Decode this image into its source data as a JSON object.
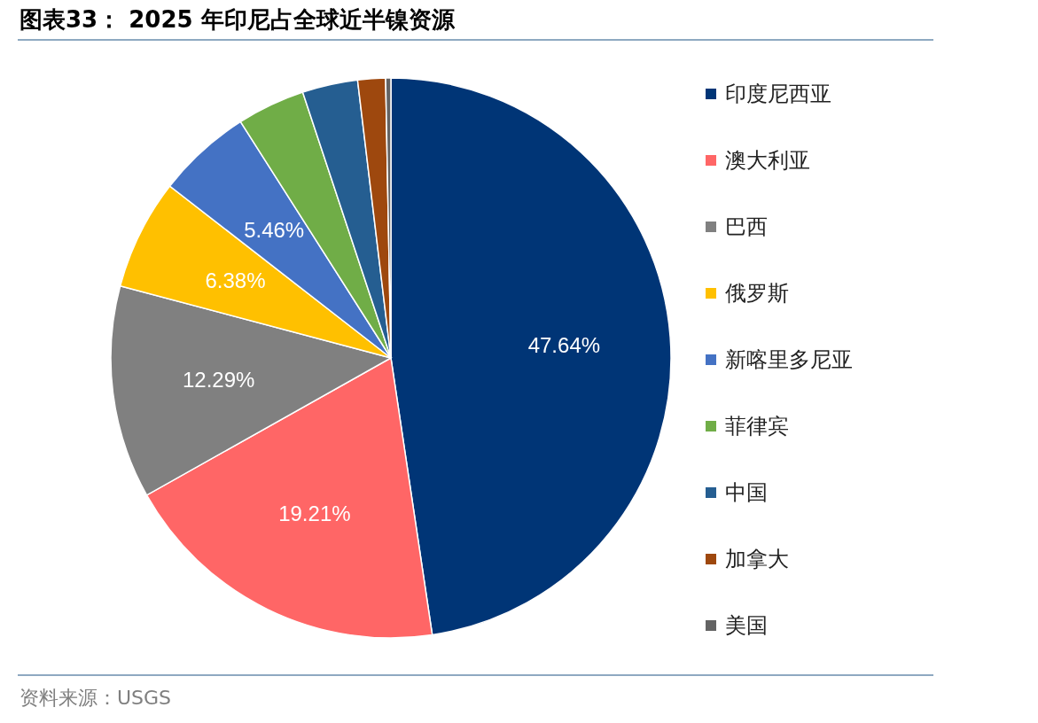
{
  "chart_data": {
    "type": "pie",
    "title": "图表33： 2025 年印尼占全球近半镍资源",
    "categories": [
      "印度尼西亚",
      "澳大利亚",
      "巴西",
      "俄罗斯",
      "新喀里多尼亚",
      "菲律宾",
      "中国",
      "加拿大",
      "美国"
    ],
    "values": [
      47.64,
      19.21,
      12.29,
      6.38,
      5.46,
      3.92,
      3.2,
      1.6,
      0.3
    ],
    "colors": [
      "#003576",
      "#ff6666",
      "#808080",
      "#ffc000",
      "#4472c4",
      "#70ad47",
      "#255e91",
      "#9e480e",
      "#636363"
    ],
    "value_labels": [
      "47.64%",
      "19.21%",
      "12.29%",
      "6.38%",
      "5.46%",
      null,
      null,
      null,
      null
    ],
    "legend": "right",
    "annotations": [
      "资料来源：USGS"
    ]
  }
}
